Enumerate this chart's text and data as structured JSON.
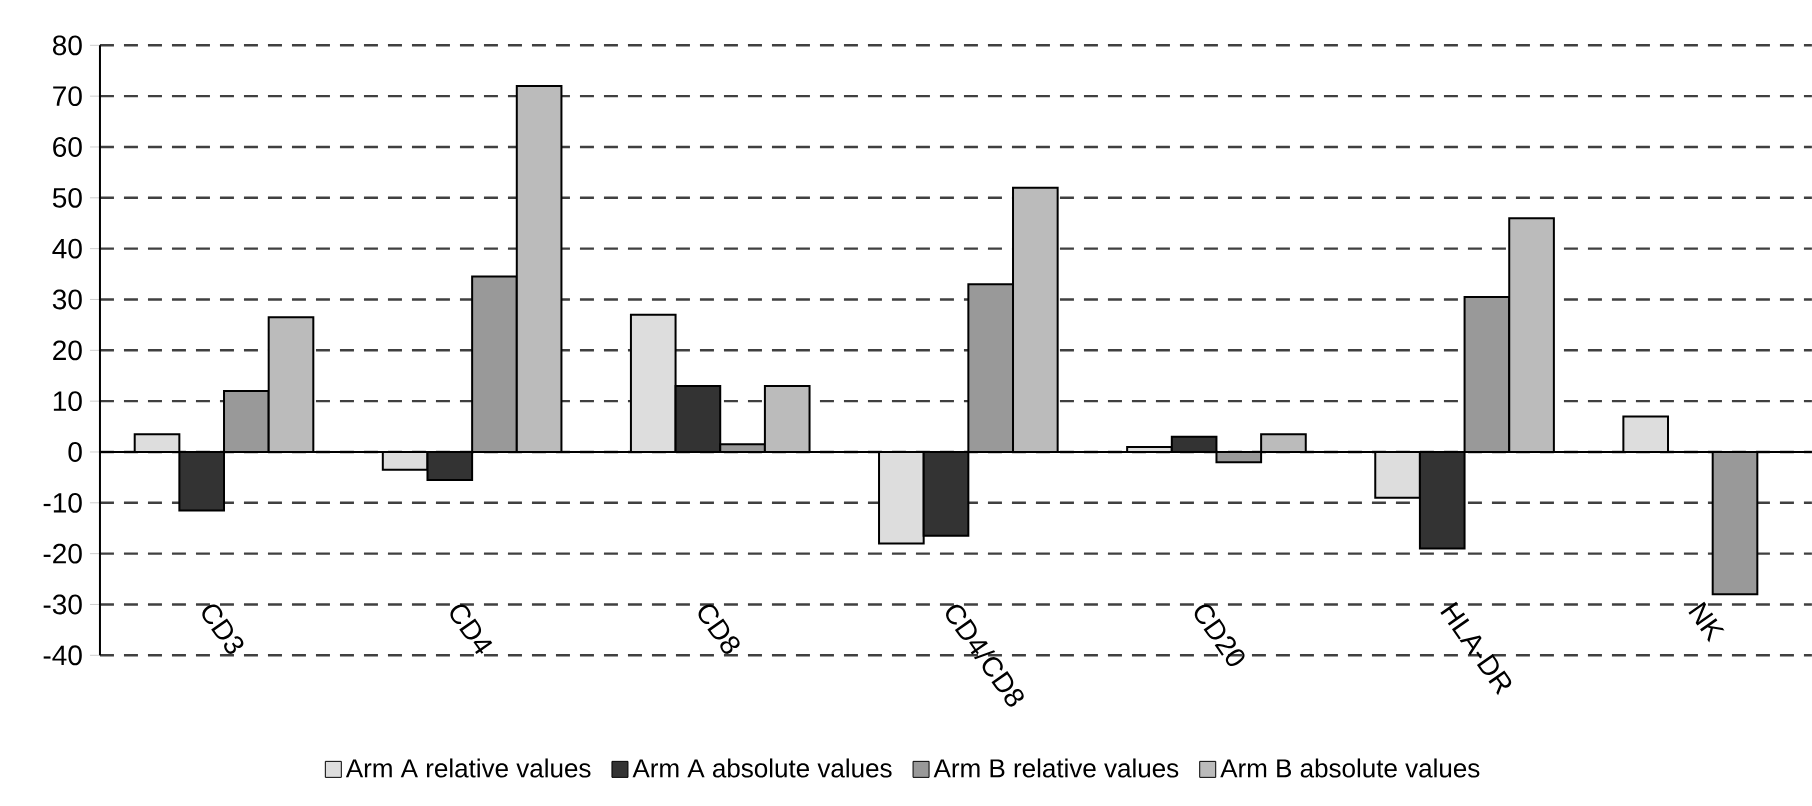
{
  "chart_data": {
    "type": "bar",
    "categories": [
      "CD3",
      "CD4",
      "CD8",
      "CD4/CD8",
      "CD20",
      "HLA-DR",
      "NK"
    ],
    "series": [
      {
        "name": "Arm A relative values",
        "color": "#dddddd",
        "values": [
          3.5,
          -3.5,
          27,
          -18,
          1,
          -9,
          7
        ]
      },
      {
        "name": "Arm A absolute values",
        "color": "#333333",
        "values": [
          -11.5,
          -5.5,
          13,
          -16.5,
          3,
          -19,
          null
        ]
      },
      {
        "name": "Arm B relative values",
        "color": "#999999",
        "values": [
          12,
          34.5,
          1.5,
          33,
          -2,
          30.5,
          -28
        ]
      },
      {
        "name": "Arm B absolute values",
        "color": "#bbbbbb",
        "values": [
          26.5,
          72,
          13,
          52,
          3.5,
          46,
          null
        ]
      }
    ],
    "ylim": [
      -40,
      80
    ],
    "yticks": [
      -40,
      -30,
      -20,
      -10,
      0,
      10,
      20,
      30,
      40,
      50,
      60,
      70,
      80
    ],
    "grid": "y",
    "legend": "bottom"
  }
}
